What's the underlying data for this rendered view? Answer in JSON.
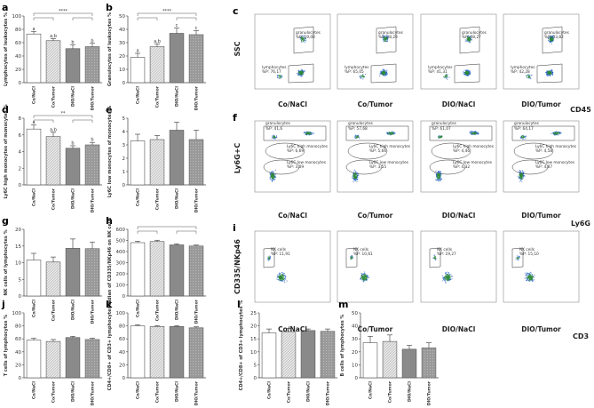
{
  "groups": [
    "Co/NaCl",
    "Co/Tumor",
    "DIO/NaCl",
    "DIO/Tumor"
  ],
  "colors": {
    "bar1": "#ffffff",
    "bar2": "#e4e4e4",
    "bar3": "#8a8a8a",
    "bar4": "#a6a6a6",
    "stroke": "#555555"
  },
  "chart_data": [
    {
      "id": "a",
      "type": "bar",
      "ylabel": "Lymphocytes of leukocytes %",
      "ylim": [
        0,
        100
      ],
      "ticks": [
        0,
        20,
        40,
        60,
        80,
        100
      ],
      "values": [
        73,
        63,
        51,
        54
      ],
      "errors": [
        4,
        3,
        6,
        5
      ],
      "letters": [
        "a",
        "a,b",
        "b",
        "b"
      ],
      "brackets": [
        {
          "from": 0,
          "to": 3,
          "label": "****",
          "level": 0
        },
        {
          "from": 0,
          "to": 1,
          "label": "",
          "level": 1
        },
        {
          "from": 2,
          "to": 3,
          "label": "",
          "level": 1
        }
      ]
    },
    {
      "id": "b",
      "type": "bar",
      "ylabel": "Granulocytes of leukocytes %",
      "ylim": [
        0,
        50
      ],
      "ticks": [
        0,
        10,
        20,
        30,
        40,
        50
      ],
      "values": [
        19,
        27,
        37,
        36
      ],
      "errors": [
        3,
        2,
        4,
        3
      ],
      "letters": [
        "a",
        "a,b",
        "c",
        "c"
      ],
      "brackets": [
        {
          "from": 0,
          "to": 3,
          "label": "****",
          "level": 0
        },
        {
          "from": 0,
          "to": 1,
          "label": "",
          "level": 1
        },
        {
          "from": 2,
          "to": 3,
          "label": "",
          "level": 1
        }
      ]
    },
    {
      "id": "d",
      "type": "bar",
      "ylabel": "Ly6C high monocytes of monocytes %",
      "ylim": [
        0,
        8
      ],
      "ticks": [
        0,
        2,
        4,
        6,
        8
      ],
      "values": [
        6.7,
        5.8,
        4.4,
        4.8
      ],
      "errors": [
        0.5,
        0.5,
        0.3,
        0.3
      ],
      "letters": [
        "a",
        "a,b",
        "b",
        "b"
      ],
      "brackets": [
        {
          "from": 0,
          "to": 3,
          "label": "**",
          "level": 0
        },
        {
          "from": 0,
          "to": 1,
          "label": "",
          "level": 1
        },
        {
          "from": 2,
          "to": 3,
          "label": "",
          "level": 1
        }
      ]
    },
    {
      "id": "e",
      "type": "bar",
      "ylabel": "Ly6C low monocytes of monocytes %",
      "ylim": [
        0,
        5
      ],
      "ticks": [
        0,
        1,
        2,
        3,
        4,
        5
      ],
      "values": [
        3.3,
        3.4,
        4.1,
        3.4
      ],
      "errors": [
        0.5,
        0.3,
        0.6,
        0.7
      ],
      "letters": [
        "",
        "",
        "",
        ""
      ],
      "brackets": []
    },
    {
      "id": "g",
      "type": "bar",
      "ylabel": "NK cells of lymphocytes %",
      "ylim": [
        0,
        20
      ],
      "ticks": [
        0,
        5,
        10,
        15,
        20
      ],
      "values": [
        10.8,
        10.2,
        14.3,
        14.2
      ],
      "errors": [
        2,
        1.5,
        2.8,
        2
      ],
      "letters": [
        "",
        "",
        "",
        ""
      ],
      "brackets": []
    },
    {
      "id": "h",
      "type": "bar",
      "ylabel": "Median of CD335/NKp46 on NK cells",
      "ylim": [
        0,
        600
      ],
      "ticks": [
        0,
        100,
        200,
        300,
        400,
        500,
        600
      ],
      "values": [
        480,
        490,
        460,
        450
      ],
      "errors": [
        12,
        12,
        10,
        8
      ],
      "letters": [
        "",
        "",
        "",
        ""
      ],
      "brackets": [
        {
          "from": 0,
          "to": 3,
          "label": "",
          "level": 0
        },
        {
          "from": 0,
          "to": 1,
          "label": "",
          "level": 1
        },
        {
          "from": 2,
          "to": 3,
          "label": "",
          "level": 1
        }
      ]
    },
    {
      "id": "j",
      "type": "bar",
      "ylabel": "T cells of lymphocytes %",
      "ylim": [
        0,
        100
      ],
      "ticks": [
        0,
        20,
        40,
        60,
        80,
        100
      ],
      "values": [
        58,
        56,
        62,
        59
      ],
      "errors": [
        3,
        3,
        2,
        2
      ],
      "letters": [
        "",
        "",
        "",
        ""
      ],
      "brackets": []
    },
    {
      "id": "k",
      "type": "bar",
      "ylabel": "CD4+/CD8+ of CD3+ lymphocytes %",
      "ylim": [
        0,
        100
      ],
      "ticks": [
        0,
        20,
        40,
        60,
        80,
        100
      ],
      "values": [
        80,
        79,
        79,
        77
      ],
      "errors": [
        1.5,
        1.5,
        1.5,
        1.5
      ],
      "letters": [
        "",
        "",
        "",
        ""
      ],
      "brackets": []
    },
    {
      "id": "l",
      "type": "bar",
      "ylabel": "CD4+/CD8+ of CD3+ lymphocytes %",
      "ylim": [
        0,
        25
      ],
      "ticks": [
        0,
        5,
        10,
        15,
        20,
        25
      ],
      "values": [
        17.3,
        17.8,
        18.2,
        17.9
      ],
      "errors": [
        1.5,
        1.2,
        0.6,
        0.9
      ],
      "letters": [
        "",
        "",
        "",
        ""
      ],
      "brackets": []
    },
    {
      "id": "m",
      "type": "bar",
      "ylabel": "B cells of lymphocytes %",
      "ylim": [
        0,
        50
      ],
      "ticks": [
        0,
        10,
        20,
        30,
        40,
        50
      ],
      "values": [
        27,
        28,
        22,
        23
      ],
      "errors": [
        5,
        5,
        3,
        4
      ],
      "letters": [
        "",
        "",
        "",
        ""
      ],
      "brackets": []
    }
  ],
  "flow_panels": [
    {
      "id": "c",
      "yaxis": "SSC",
      "xaxis": "CD45",
      "plots": [
        {
          "group": "Co/NaCl",
          "gates": [
            "granulocytes",
            "%P: 19,08",
            "lymphocytes",
            "%P: 76,17"
          ]
        },
        {
          "group": "Co/Tumor",
          "gates": [
            "granulocytes",
            "%P: 28,29",
            "lymphocytes",
            "%P: 65,05"
          ]
        },
        {
          "group": "DIO/NaCl",
          "gates": [
            "granulocytes",
            "%P: 38,27",
            "lymphocytes",
            "%P: 41,31"
          ]
        },
        {
          "group": "DIO/Tumor",
          "gates": [
            "granulocytes",
            "%P: 33,82",
            "lymphocytes",
            "%P: 42,28"
          ]
        }
      ]
    },
    {
      "id": "f",
      "yaxis": "Ly6G+C",
      "xaxis": "Ly6G",
      "plots": [
        {
          "group": "Co/NaCl",
          "gates": [
            "granulocytes",
            "%P: 41,6",
            "Ly6C high monocytes",
            "%P: 6,69",
            "Ly6C low monocytes",
            "%P: 3,09"
          ]
        },
        {
          "group": "Co/Tumor",
          "gates": [
            "granulocytes",
            "%P: 57,68",
            "Ly6C high monocytes",
            "%P: 5,66",
            "Ly6C low monocytes",
            "%P: 3,55"
          ]
        },
        {
          "group": "DIO/NaCl",
          "gates": [
            "granulocytes",
            "%P: 61,07",
            "Ly6C high monocytes",
            "%P: 4,46",
            "Ly6C low monocytes",
            "%P: 4,32"
          ]
        },
        {
          "group": "DIO/Tumor",
          "gates": [
            "granulocytes",
            "%P: 64,17",
            "Ly6C high monocytes",
            "%P: 4,58",
            "Ly6C low monocytes",
            "%P: 4,87"
          ]
        }
      ]
    },
    {
      "id": "i",
      "yaxis": "CD335/NKp46",
      "xaxis": "CD3",
      "plots": [
        {
          "group": "Co/NaCl",
          "gates": [
            "NK cells",
            "%P: 11,91"
          ]
        },
        {
          "group": "Co/Tumor",
          "gates": [
            "NK cells",
            "%P: 10,61"
          ]
        },
        {
          "group": "DIO/NaCl",
          "gates": [
            "NK cells",
            "%P: 19,27"
          ]
        },
        {
          "group": "DIO/Tumor",
          "gates": [
            "NK cells",
            "%P: 15,10"
          ]
        }
      ]
    }
  ]
}
